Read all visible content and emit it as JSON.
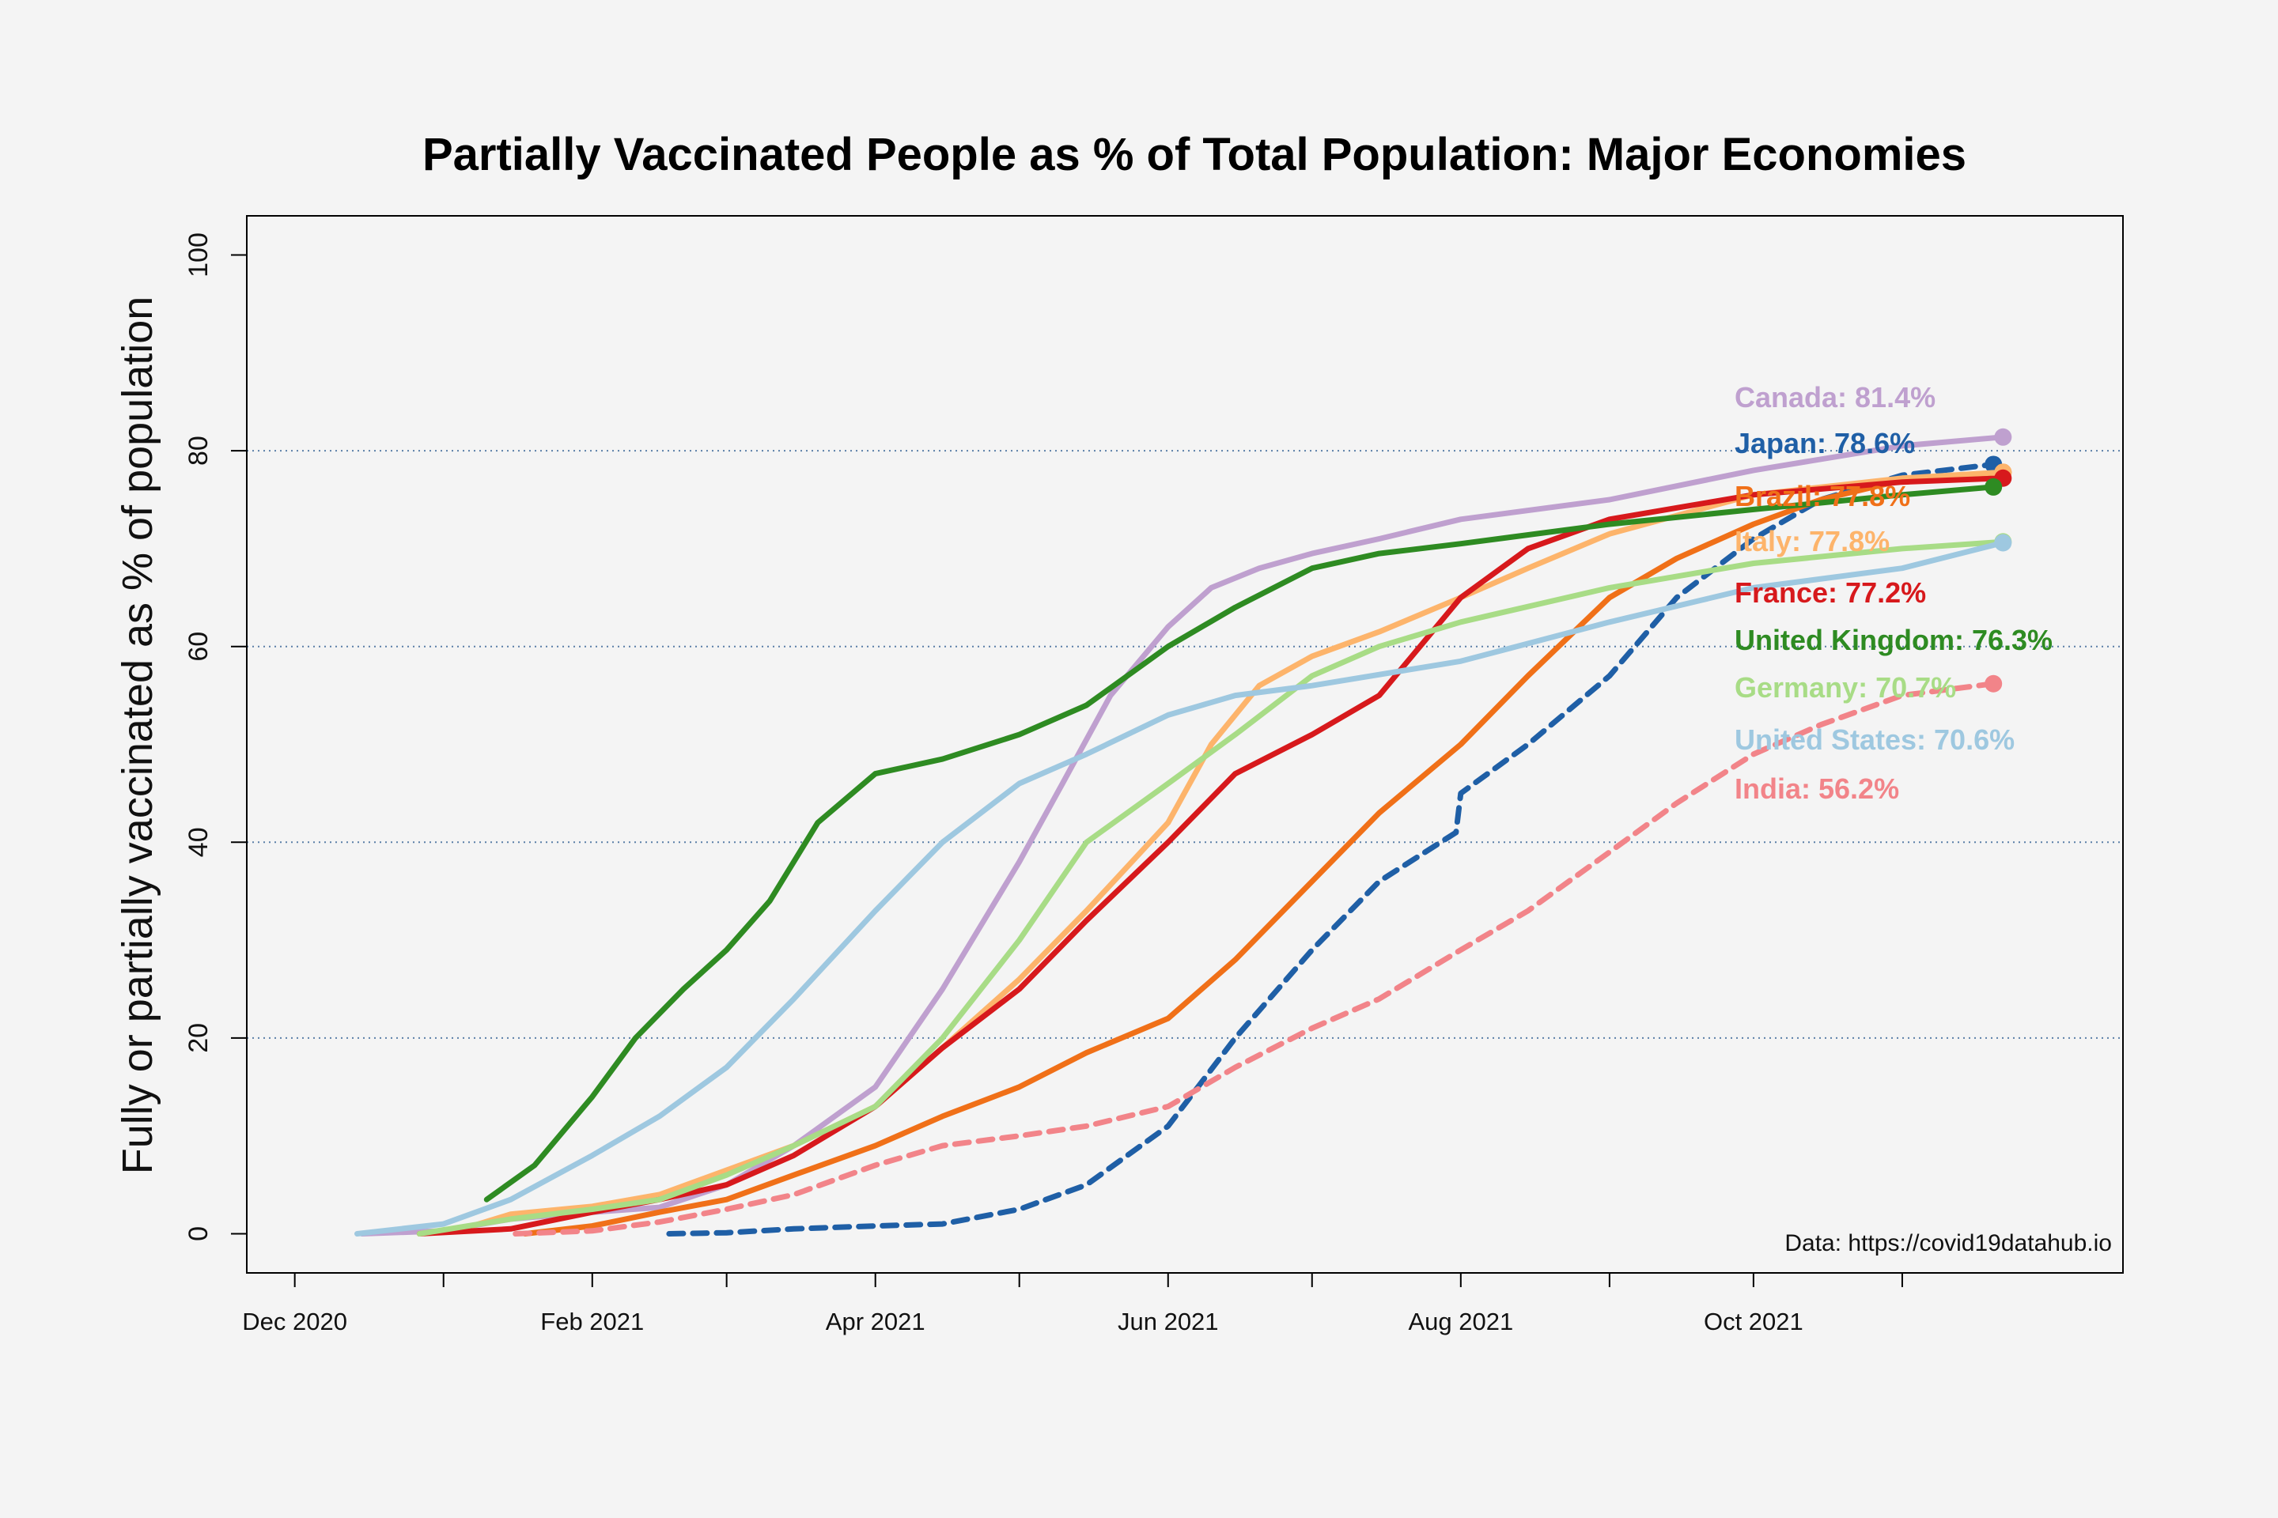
{
  "chart_data": {
    "type": "line",
    "title": "Partially Vaccinated People as % of Total Population: Major Economies",
    "ylabel": "Fully or partially vaccinated as % of population",
    "xlabel": "",
    "ylim": [
      -4,
      104
    ],
    "xlim": [
      "2020-11-21",
      "2021-12-17"
    ],
    "y_ticks": [
      0,
      20,
      40,
      60,
      80,
      100
    ],
    "x_ticks": [
      {
        "date": "2020-12-01",
        "label": "Dec 2020"
      },
      {
        "date": "2021-01-01",
        "label": ""
      },
      {
        "date": "2021-02-01",
        "label": "Feb 2021"
      },
      {
        "date": "2021-03-01",
        "label": ""
      },
      {
        "date": "2021-04-01",
        "label": "Apr 2021"
      },
      {
        "date": "2021-05-01",
        "label": ""
      },
      {
        "date": "2021-06-01",
        "label": "Jun 2021"
      },
      {
        "date": "2021-07-01",
        "label": ""
      },
      {
        "date": "2021-08-01",
        "label": "Aug 2021"
      },
      {
        "date": "2021-09-01",
        "label": ""
      },
      {
        "date": "2021-10-01",
        "label": "Oct 2021"
      },
      {
        "date": "2021-11-01",
        "label": ""
      }
    ],
    "grid": "dotted horizontal at 20, 40, 60, 80",
    "legend_placement": "right, labels at series ends",
    "source_note": "Data: https://covid19datahub.io",
    "series": [
      {
        "name": "Canada",
        "label": "Canada: 81.4%",
        "color": "#bfa0cf",
        "dash": false,
        "points": [
          [
            "2020-12-15",
            0
          ],
          [
            "2021-01-01",
            0.3
          ],
          [
            "2021-01-15",
            1.5
          ],
          [
            "2021-02-01",
            2.2
          ],
          [
            "2021-02-15",
            2.7
          ],
          [
            "2021-03-01",
            5
          ],
          [
            "2021-03-15",
            9
          ],
          [
            "2021-04-01",
            15
          ],
          [
            "2021-04-15",
            25
          ],
          [
            "2021-05-01",
            38
          ],
          [
            "2021-05-10",
            46
          ],
          [
            "2021-05-20",
            55
          ],
          [
            "2021-06-01",
            62
          ],
          [
            "2021-06-10",
            66
          ],
          [
            "2021-06-20",
            68
          ],
          [
            "2021-07-01",
            69.5
          ],
          [
            "2021-07-15",
            71
          ],
          [
            "2021-08-01",
            73
          ],
          [
            "2021-09-01",
            75
          ],
          [
            "2021-10-01",
            78
          ],
          [
            "2021-11-01",
            80.5
          ],
          [
            "2021-11-22",
            81.4
          ]
        ]
      },
      {
        "name": "Japan",
        "label": "Japan: 78.6%",
        "color": "#1f5fa6",
        "dash": true,
        "points": [
          [
            "2021-02-17",
            0
          ],
          [
            "2021-03-01",
            0.1
          ],
          [
            "2021-03-15",
            0.5
          ],
          [
            "2021-04-01",
            0.8
          ],
          [
            "2021-04-15",
            1.0
          ],
          [
            "2021-05-01",
            2.5
          ],
          [
            "2021-05-15",
            5
          ],
          [
            "2021-06-01",
            11
          ],
          [
            "2021-06-15",
            20
          ],
          [
            "2021-07-01",
            29
          ],
          [
            "2021-07-15",
            36
          ],
          [
            "2021-07-31",
            41
          ],
          [
            "2021-08-01",
            45
          ],
          [
            "2021-08-15",
            50
          ],
          [
            "2021-09-01",
            57
          ],
          [
            "2021-09-15",
            65
          ],
          [
            "2021-10-01",
            71
          ],
          [
            "2021-10-15",
            75
          ],
          [
            "2021-11-01",
            77.5
          ],
          [
            "2021-11-20",
            78.6
          ]
        ]
      },
      {
        "name": "Brazil",
        "label": "Brazil: 77.8%",
        "color": "#f07018",
        "dash": false,
        "points": [
          [
            "2021-01-18",
            0
          ],
          [
            "2021-02-01",
            0.8
          ],
          [
            "2021-02-15",
            2.2
          ],
          [
            "2021-03-01",
            3.5
          ],
          [
            "2021-03-15",
            6
          ],
          [
            "2021-04-01",
            9
          ],
          [
            "2021-04-15",
            12
          ],
          [
            "2021-05-01",
            15
          ],
          [
            "2021-05-15",
            18.5
          ],
          [
            "2021-06-01",
            22
          ],
          [
            "2021-06-15",
            28
          ],
          [
            "2021-07-01",
            36
          ],
          [
            "2021-07-15",
            43
          ],
          [
            "2021-08-01",
            50
          ],
          [
            "2021-08-15",
            57
          ],
          [
            "2021-09-01",
            65
          ],
          [
            "2021-09-15",
            69
          ],
          [
            "2021-10-01",
            72.5
          ],
          [
            "2021-10-15",
            75
          ],
          [
            "2021-11-01",
            77
          ],
          [
            "2021-11-22",
            77.8
          ]
        ]
      },
      {
        "name": "Italy",
        "label": "Italy: 77.8%",
        "color": "#fdb46b",
        "dash": false,
        "points": [
          [
            "2020-12-27",
            0
          ],
          [
            "2021-01-05",
            0.5
          ],
          [
            "2021-01-15",
            2
          ],
          [
            "2021-02-01",
            2.8
          ],
          [
            "2021-02-15",
            4
          ],
          [
            "2021-03-01",
            6.5
          ],
          [
            "2021-03-15",
            9
          ],
          [
            "2021-04-01",
            13
          ],
          [
            "2021-04-15",
            19
          ],
          [
            "2021-05-01",
            26
          ],
          [
            "2021-05-15",
            33
          ],
          [
            "2021-06-01",
            42
          ],
          [
            "2021-06-10",
            50
          ],
          [
            "2021-06-20",
            56
          ],
          [
            "2021-07-01",
            59
          ],
          [
            "2021-07-15",
            61.5
          ],
          [
            "2021-08-01",
            65
          ],
          [
            "2021-08-15",
            68
          ],
          [
            "2021-09-01",
            71.5
          ],
          [
            "2021-10-01",
            75.5
          ],
          [
            "2021-11-01",
            77.2
          ],
          [
            "2021-11-22",
            77.8
          ]
        ]
      },
      {
        "name": "France",
        "label": "France: 77.2%",
        "color": "#d7191c",
        "dash": false,
        "points": [
          [
            "2020-12-27",
            0
          ],
          [
            "2021-01-15",
            0.5
          ],
          [
            "2021-02-01",
            2.2
          ],
          [
            "2021-02-15",
            3.5
          ],
          [
            "2021-03-01",
            5
          ],
          [
            "2021-03-15",
            8
          ],
          [
            "2021-04-01",
            13
          ],
          [
            "2021-04-15",
            19
          ],
          [
            "2021-05-01",
            25
          ],
          [
            "2021-05-15",
            32
          ],
          [
            "2021-06-01",
            40
          ],
          [
            "2021-06-15",
            47
          ],
          [
            "2021-07-01",
            51
          ],
          [
            "2021-07-15",
            55
          ],
          [
            "2021-08-01",
            65
          ],
          [
            "2021-08-15",
            70
          ],
          [
            "2021-09-01",
            73
          ],
          [
            "2021-10-01",
            75.5
          ],
          [
            "2021-11-01",
            76.8
          ],
          [
            "2021-11-22",
            77.2
          ]
        ]
      },
      {
        "name": "United Kingdom",
        "label": "United Kingdom: 76.3%",
        "color": "#2e8b22",
        "dash": false,
        "points": [
          [
            "2021-01-10",
            3.5
          ],
          [
            "2021-01-20",
            7
          ],
          [
            "2021-02-01",
            14
          ],
          [
            "2021-02-10",
            20
          ],
          [
            "2021-02-20",
            25
          ],
          [
            "2021-03-01",
            29
          ],
          [
            "2021-03-10",
            34
          ],
          [
            "2021-03-20",
            42
          ],
          [
            "2021-04-01",
            47
          ],
          [
            "2021-04-15",
            48.5
          ],
          [
            "2021-05-01",
            51
          ],
          [
            "2021-05-15",
            54
          ],
          [
            "2021-06-01",
            60
          ],
          [
            "2021-06-15",
            64
          ],
          [
            "2021-07-01",
            68
          ],
          [
            "2021-07-15",
            69.5
          ],
          [
            "2021-08-01",
            70.5
          ],
          [
            "2021-09-01",
            72.5
          ],
          [
            "2021-10-01",
            74
          ],
          [
            "2021-11-01",
            75.5
          ],
          [
            "2021-11-20",
            76.3
          ]
        ]
      },
      {
        "name": "Germany",
        "label": "Germany: 70.7%",
        "color": "#a8dc86",
        "dash": false,
        "points": [
          [
            "2020-12-27",
            0
          ],
          [
            "2021-01-15",
            1.5
          ],
          [
            "2021-02-01",
            2.5
          ],
          [
            "2021-02-15",
            3.5
          ],
          [
            "2021-03-01",
            6
          ],
          [
            "2021-03-15",
            9
          ],
          [
            "2021-04-01",
            13
          ],
          [
            "2021-04-15",
            20
          ],
          [
            "2021-05-01",
            30
          ],
          [
            "2021-05-15",
            40
          ],
          [
            "2021-06-01",
            46
          ],
          [
            "2021-06-15",
            51
          ],
          [
            "2021-07-01",
            57
          ],
          [
            "2021-07-15",
            60
          ],
          [
            "2021-08-01",
            62.5
          ],
          [
            "2021-09-01",
            66
          ],
          [
            "2021-10-01",
            68.5
          ],
          [
            "2021-11-01",
            70
          ],
          [
            "2021-11-22",
            70.7
          ]
        ]
      },
      {
        "name": "United States",
        "label": "United States: 70.6%",
        "color": "#9ec8e0",
        "dash": false,
        "points": [
          [
            "2020-12-14",
            0
          ],
          [
            "2021-01-01",
            1
          ],
          [
            "2021-01-15",
            3.5
          ],
          [
            "2021-02-01",
            8
          ],
          [
            "2021-02-15",
            12
          ],
          [
            "2021-03-01",
            17
          ],
          [
            "2021-03-15",
            24
          ],
          [
            "2021-04-01",
            33
          ],
          [
            "2021-04-15",
            40
          ],
          [
            "2021-05-01",
            46
          ],
          [
            "2021-05-15",
            49
          ],
          [
            "2021-06-01",
            53
          ],
          [
            "2021-06-15",
            55
          ],
          [
            "2021-07-01",
            56
          ],
          [
            "2021-08-01",
            58.5
          ],
          [
            "2021-09-01",
            62.5
          ],
          [
            "2021-10-01",
            66
          ],
          [
            "2021-11-01",
            68
          ],
          [
            "2021-11-22",
            70.6
          ]
        ]
      },
      {
        "name": "India",
        "label": "India: 56.2%",
        "color": "#f28489",
        "dash": true,
        "points": [
          [
            "2021-01-16",
            0
          ],
          [
            "2021-02-01",
            0.3
          ],
          [
            "2021-02-15",
            1.2
          ],
          [
            "2021-03-01",
            2.5
          ],
          [
            "2021-03-15",
            4
          ],
          [
            "2021-04-01",
            7
          ],
          [
            "2021-04-15",
            9
          ],
          [
            "2021-05-01",
            10
          ],
          [
            "2021-05-15",
            11
          ],
          [
            "2021-06-01",
            13
          ],
          [
            "2021-06-15",
            17
          ],
          [
            "2021-07-01",
            21
          ],
          [
            "2021-07-15",
            24
          ],
          [
            "2021-08-01",
            29
          ],
          [
            "2021-08-15",
            33
          ],
          [
            "2021-09-01",
            39
          ],
          [
            "2021-09-15",
            44
          ],
          [
            "2021-10-01",
            49
          ],
          [
            "2021-10-15",
            52
          ],
          [
            "2021-11-01",
            55
          ],
          [
            "2021-11-20",
            56.2
          ]
        ]
      }
    ]
  }
}
